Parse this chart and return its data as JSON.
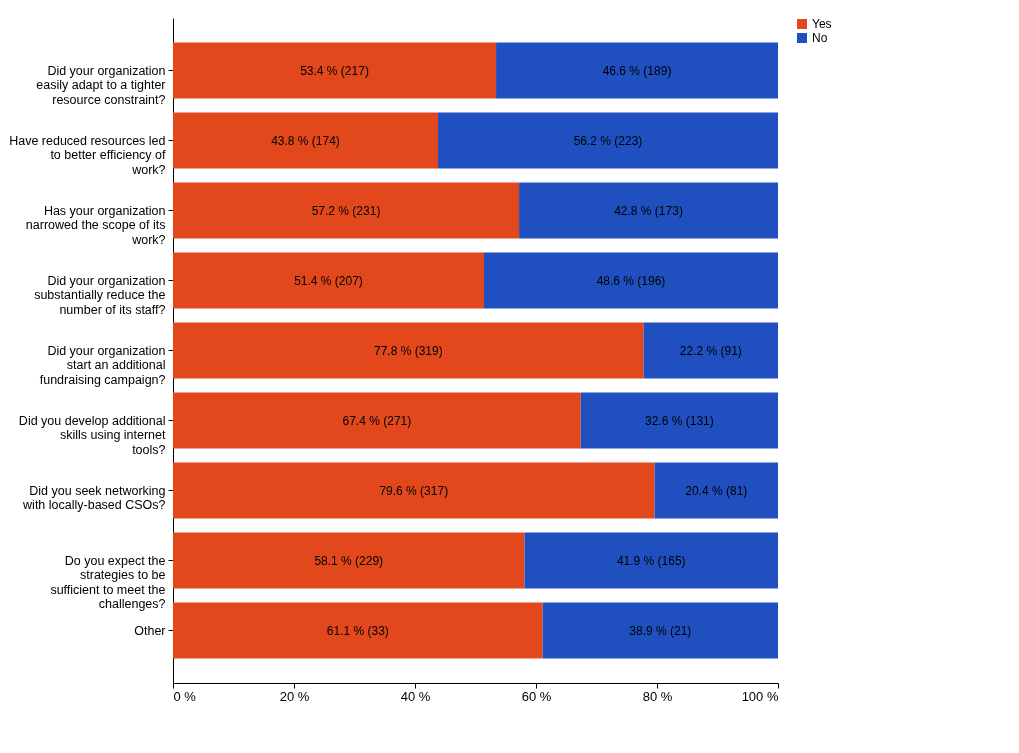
{
  "chart_data": {
    "type": "bar",
    "orientation": "horizontal",
    "stacked": true,
    "categories": [
      "Did your organization easily adapt to a tighter resource constraint?",
      "Have reduced resources led to better efficiency of work?",
      "Has your organization narrowed the scope of its work?",
      "Did your organization substantially reduce the number of its staff?",
      "Did your organization start an additional fundraising campaign?",
      "Did you develop additional skills using internet tools?",
      "Did you seek networking with locally-based CSOs?",
      "Do you expect the strategies to be sufficient to meet the challenges?",
      "Other"
    ],
    "series": [
      {
        "name": "Yes",
        "color": "#e2481c",
        "values": [
          53.4,
          43.8,
          57.2,
          51.4,
          77.8,
          67.4,
          79.6,
          58.1,
          61.1
        ],
        "value_labels": [
          "53.4 % (217)",
          "43.8 % (174)",
          "57.2 % (231)",
          "51.4 % (207)",
          "77.8 % (319)",
          "67.4 % (271)",
          "79.6 % (317)",
          "58.1 % (229)",
          "61.1 % (33)"
        ]
      },
      {
        "name": "No",
        "color": "#2050c0",
        "values": [
          46.6,
          56.2,
          42.8,
          48.6,
          22.2,
          32.6,
          20.4,
          41.9,
          38.9
        ],
        "value_labels": [
          "46.6 % (189)",
          "56.2 % (223)",
          "42.8 % (173)",
          "48.6 % (196)",
          "22.2 % (91)",
          "32.6 % (131)",
          "20.4 % (81)",
          "41.9 % (165)",
          "38.9 % (21)"
        ]
      }
    ],
    "xlim": [
      0,
      100
    ],
    "xticks": [
      {
        "value": 0,
        "label": "0 %"
      },
      {
        "value": 20,
        "label": "20 %"
      },
      {
        "value": 40,
        "label": "40 %"
      },
      {
        "value": 60,
        "label": "60 %"
      },
      {
        "value": 80,
        "label": "80 %"
      },
      {
        "value": 100,
        "label": "100 %"
      }
    ],
    "grid": false,
    "legend": "right"
  }
}
